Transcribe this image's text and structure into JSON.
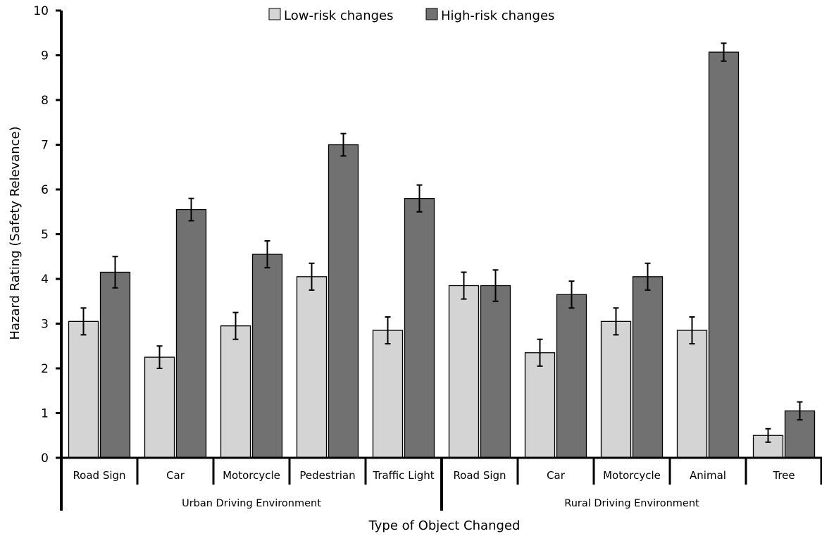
{
  "chart_data": {
    "type": "bar",
    "title": "",
    "xlabel": "Type of Object Changed",
    "ylabel": "Hazard Rating (Safety Relevance)",
    "ylim": [
      0,
      10
    ],
    "yticks": [
      "0",
      "1",
      "2",
      "3",
      "4",
      "5",
      "6",
      "7",
      "8",
      "9",
      "10"
    ],
    "grid": false,
    "legend_position": "top-center",
    "categories": [
      "Road Sign",
      "Car",
      "Motorcycle",
      "Pedestrian",
      "Traffic Light",
      "Road Sign",
      "Car",
      "Motorcycle",
      "Animal",
      "Tree"
    ],
    "groups": [
      {
        "label": "Urban Driving Environment",
        "count": 5
      },
      {
        "label": "Rural Driving Environment",
        "count": 5
      }
    ],
    "series": [
      {
        "name": "Low-risk changes",
        "color": "#d4d4d4",
        "values": [
          3.05,
          2.25,
          2.95,
          4.05,
          2.85,
          3.85,
          2.35,
          3.05,
          2.85,
          0.5
        ],
        "errors": [
          0.3,
          0.25,
          0.3,
          0.3,
          0.3,
          0.3,
          0.3,
          0.3,
          0.3,
          0.15
        ]
      },
      {
        "name": "High-risk changes",
        "color": "#717171",
        "values": [
          4.15,
          5.55,
          4.55,
          7.0,
          5.8,
          3.85,
          3.65,
          4.05,
          9.07,
          1.05
        ],
        "errors": [
          0.35,
          0.25,
          0.3,
          0.25,
          0.3,
          0.35,
          0.3,
          0.3,
          0.2,
          0.2
        ]
      }
    ]
  }
}
